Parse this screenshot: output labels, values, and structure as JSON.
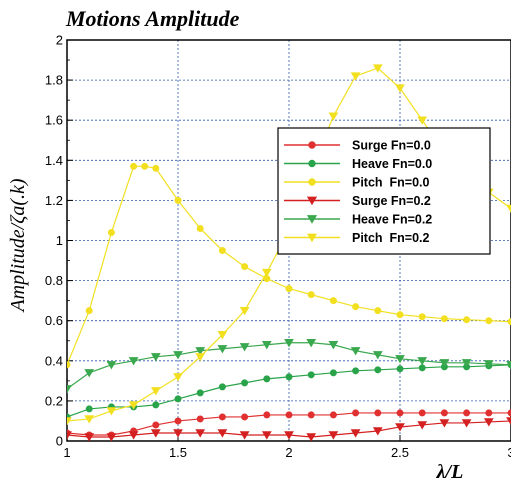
{
  "chart_data": {
    "type": "line",
    "title": "Motions Amplitude",
    "xlabel": "λ/L",
    "ylabel": "Amplitude/ζa(.k)",
    "xlim": [
      1,
      3
    ],
    "ylim": [
      0,
      2
    ],
    "x_ticks": [
      "1",
      "1.5",
      "2",
      "2.5",
      "3"
    ],
    "y_ticks": [
      "0",
      "0.2",
      "0.4",
      "0.6",
      "0.8",
      "1",
      "1.2",
      "1.4",
      "1.6",
      "1.8",
      "2"
    ],
    "grid": true,
    "legend_position": "right",
    "series": [
      {
        "name": "Surge Fn=0.0",
        "color": "#e03030",
        "marker": "circle",
        "x": [
          1.0,
          1.1,
          1.2,
          1.3,
          1.4,
          1.5,
          1.6,
          1.7,
          1.8,
          1.9,
          2.0,
          2.1,
          2.2,
          2.3,
          2.4,
          2.5,
          2.6,
          2.7,
          2.8,
          2.9,
          3.0
        ],
        "y": [
          0.04,
          0.03,
          0.03,
          0.05,
          0.08,
          0.1,
          0.11,
          0.12,
          0.12,
          0.13,
          0.13,
          0.13,
          0.13,
          0.14,
          0.14,
          0.14,
          0.14,
          0.14,
          0.14,
          0.14,
          0.14
        ]
      },
      {
        "name": "Heave Fn=0.0",
        "color": "#2aa44a",
        "marker": "circle",
        "x": [
          1.0,
          1.1,
          1.2,
          1.3,
          1.4,
          1.5,
          1.6,
          1.7,
          1.8,
          1.9,
          2.0,
          2.1,
          2.2,
          2.3,
          2.4,
          2.5,
          2.6,
          2.7,
          2.8,
          2.9,
          3.0
        ],
        "y": [
          0.12,
          0.16,
          0.17,
          0.17,
          0.18,
          0.21,
          0.24,
          0.27,
          0.29,
          0.31,
          0.32,
          0.33,
          0.34,
          0.35,
          0.355,
          0.36,
          0.365,
          0.37,
          0.37,
          0.375,
          0.38
        ]
      },
      {
        "name": "Pitch  Fn=0.0",
        "color": "#f2e020",
        "marker": "circle",
        "x": [
          1.0,
          1.1,
          1.2,
          1.3,
          1.35,
          1.4,
          1.5,
          1.6,
          1.7,
          1.8,
          1.9,
          2.0,
          2.1,
          2.2,
          2.3,
          2.4,
          2.5,
          2.6,
          2.7,
          2.8,
          2.9,
          3.0
        ],
        "y": [
          0.38,
          0.65,
          1.04,
          1.37,
          1.37,
          1.36,
          1.2,
          1.06,
          0.95,
          0.87,
          0.81,
          0.76,
          0.73,
          0.7,
          0.67,
          0.65,
          0.63,
          0.62,
          0.61,
          0.605,
          0.6,
          0.595
        ]
      },
      {
        "name": "Surge Fn=0.2",
        "color": "#d42020",
        "marker": "triangle-down",
        "x": [
          1.0,
          1.1,
          1.2,
          1.3,
          1.4,
          1.5,
          1.6,
          1.7,
          1.8,
          1.9,
          2.0,
          2.1,
          2.2,
          2.3,
          2.4,
          2.5,
          2.6,
          2.7,
          2.8,
          2.9,
          3.0
        ],
        "y": [
          0.03,
          0.02,
          0.02,
          0.03,
          0.04,
          0.04,
          0.04,
          0.04,
          0.03,
          0.03,
          0.03,
          0.02,
          0.03,
          0.04,
          0.05,
          0.07,
          0.08,
          0.09,
          0.09,
          0.095,
          0.1
        ]
      },
      {
        "name": "Heave Fn=0.2",
        "color": "#3aa84e",
        "marker": "triangle-down",
        "x": [
          1.0,
          1.1,
          1.2,
          1.3,
          1.4,
          1.5,
          1.6,
          1.7,
          1.8,
          1.9,
          2.0,
          2.1,
          2.2,
          2.3,
          2.4,
          2.5,
          2.6,
          2.7,
          2.8,
          2.9,
          3.0
        ],
        "y": [
          0.26,
          0.34,
          0.38,
          0.4,
          0.42,
          0.43,
          0.45,
          0.46,
          0.47,
          0.48,
          0.49,
          0.49,
          0.48,
          0.45,
          0.43,
          0.41,
          0.4,
          0.39,
          0.39,
          0.385,
          0.38
        ]
      },
      {
        "name": "Pitch  Fn=0.2",
        "color": "#f2e020",
        "marker": "triangle-down",
        "x": [
          1.0,
          1.1,
          1.2,
          1.3,
          1.4,
          1.5,
          1.6,
          1.7,
          1.8,
          1.9,
          2.0,
          2.1,
          2.2,
          2.3,
          2.4,
          2.5,
          2.6,
          2.7,
          2.8,
          2.9,
          3.0
        ],
        "y": [
          0.1,
          0.11,
          0.15,
          0.18,
          0.25,
          0.32,
          0.42,
          0.53,
          0.65,
          0.84,
          1.05,
          1.35,
          1.62,
          1.82,
          1.86,
          1.76,
          1.6,
          1.44,
          1.32,
          1.24,
          1.16
        ]
      }
    ]
  }
}
